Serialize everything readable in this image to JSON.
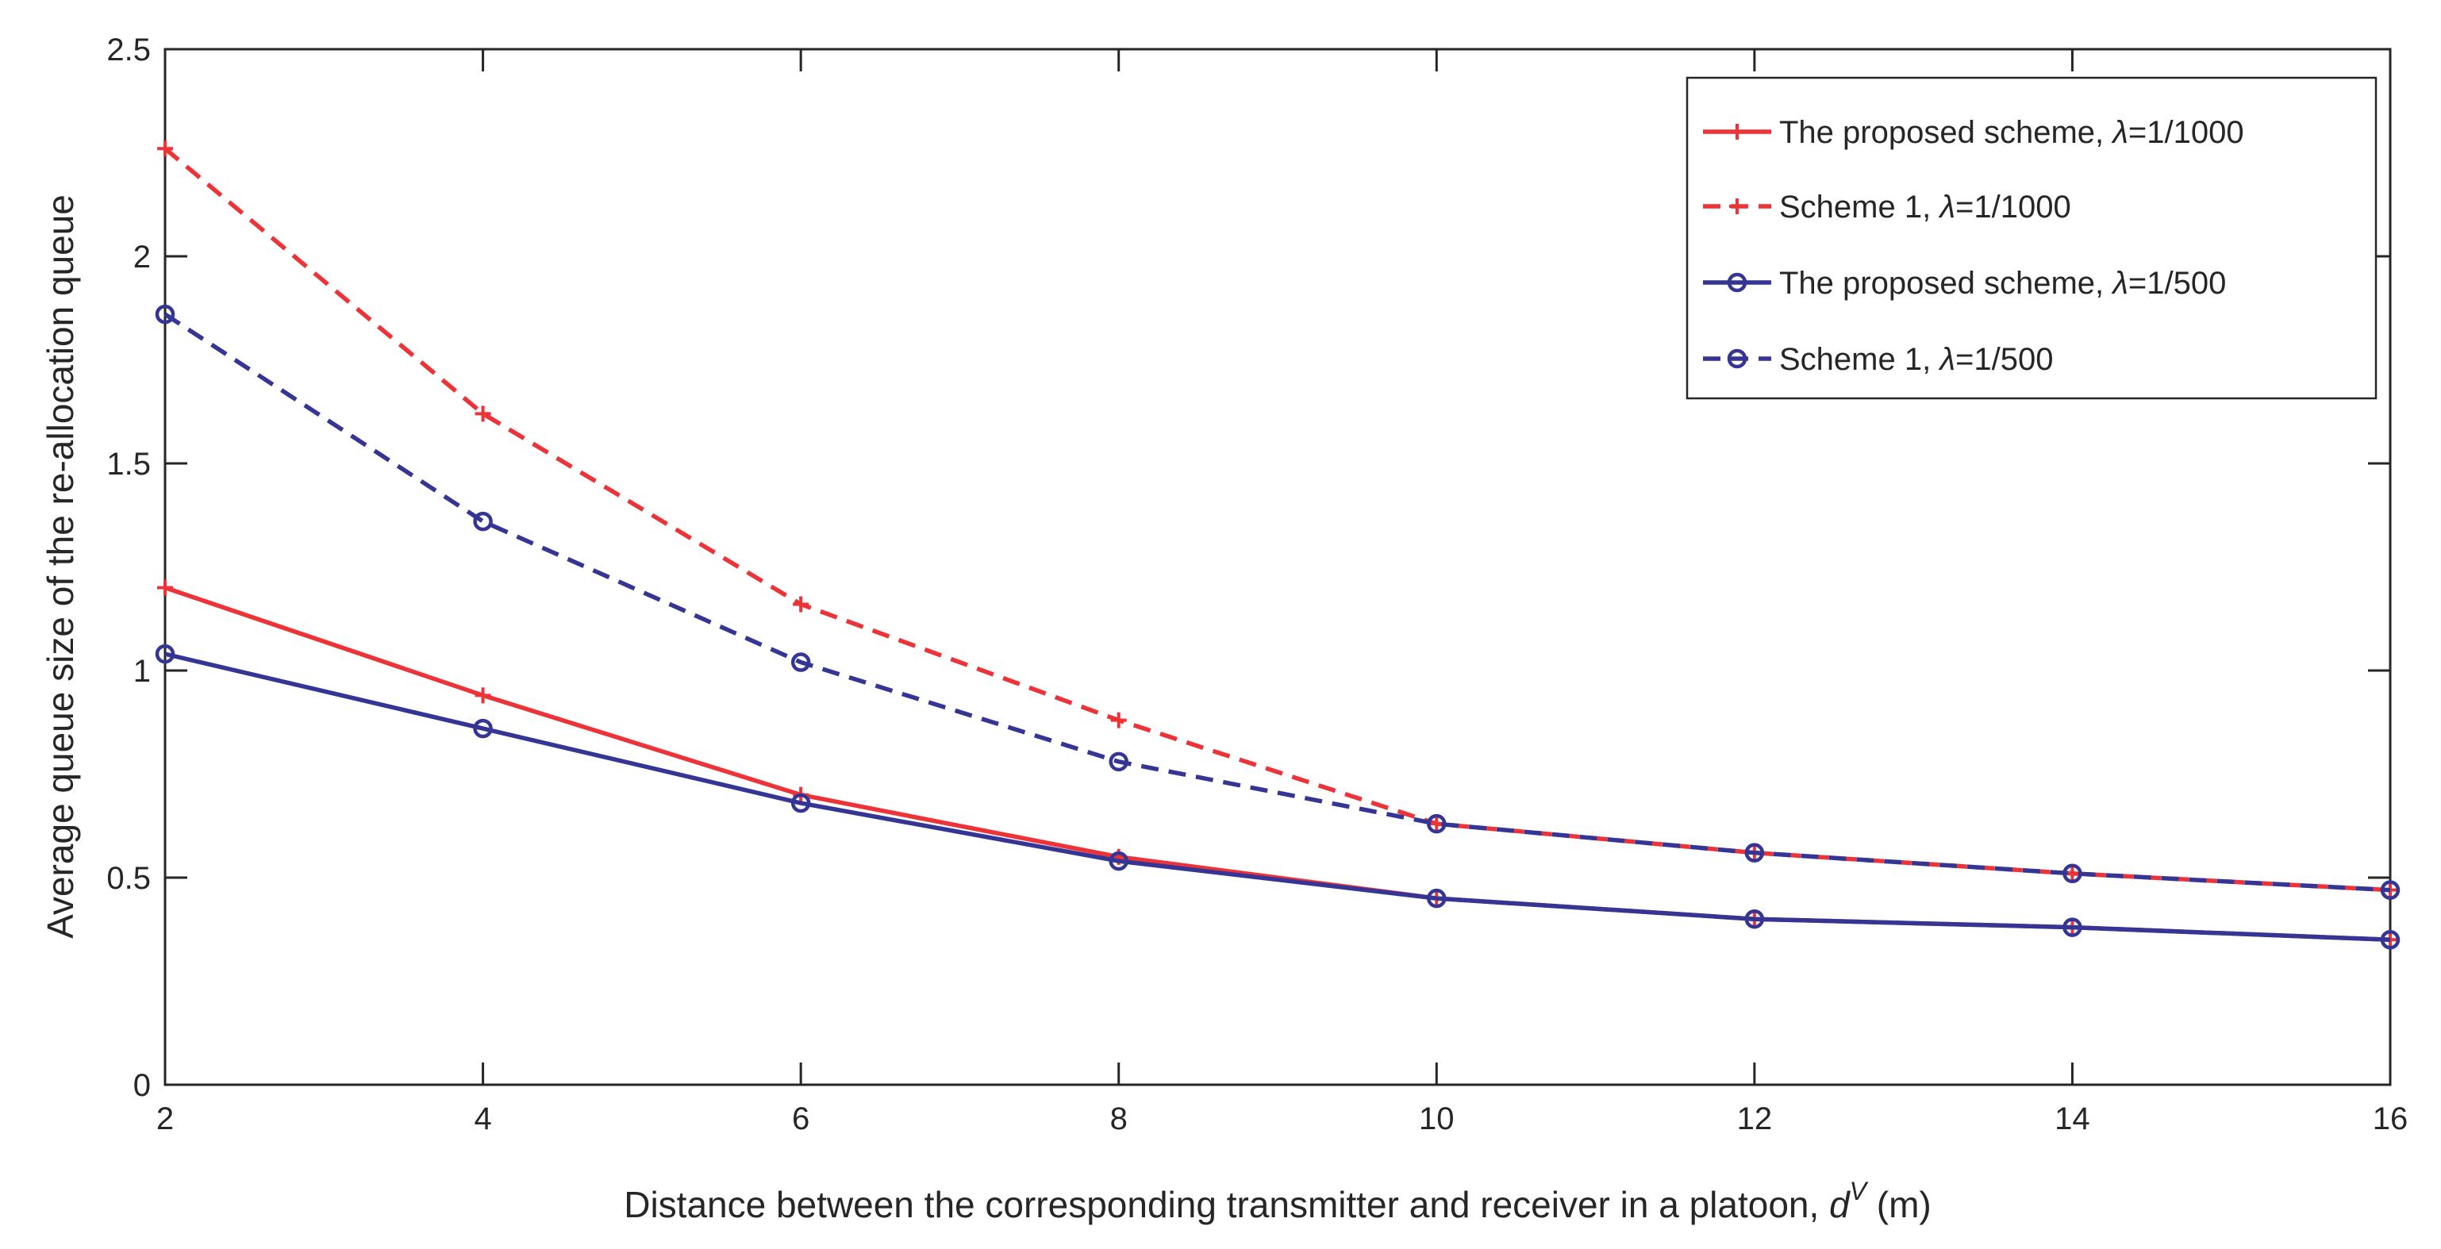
{
  "chart_data": {
    "type": "line",
    "title": "",
    "xlabel": "Distance between the corresponding transmitter and receiver in a platoon, ",
    "xlabel_symbol": "d",
    "xlabel_superscript": "V",
    "xlabel_unit": " (m)",
    "ylabel": "Average queue size of the re-allocation queue",
    "xlim": [
      2,
      16
    ],
    "ylim": [
      0,
      2.5
    ],
    "xticks": [
      2,
      4,
      6,
      8,
      10,
      12,
      14,
      16
    ],
    "xtick_labels": [
      "2",
      "4",
      "6",
      "8",
      "10",
      "12",
      "14",
      "16"
    ],
    "yticks": [
      0,
      0.5,
      1,
      1.5,
      2,
      2.5
    ],
    "ytick_labels": [
      "0",
      "0.5",
      "1",
      "1.5",
      "2",
      "2.5"
    ],
    "grid": false,
    "legend_position": "top-right",
    "x": [
      2,
      4,
      6,
      8,
      10,
      12,
      14,
      16
    ],
    "series": [
      {
        "name": "The proposed scheme, λ=1/1000",
        "legend_prefix": "The proposed scheme, ",
        "legend_symbol": "λ",
        "legend_suffix": "=1/1000",
        "color": "#ee3338",
        "dash": "solid",
        "marker": "plus",
        "values": [
          1.2,
          0.94,
          0.7,
          0.55,
          0.45,
          0.4,
          0.38,
          0.35
        ]
      },
      {
        "name": "Scheme 1, λ=1/1000",
        "legend_prefix": "Scheme 1, ",
        "legend_symbol": "λ",
        "legend_suffix": "=1/1000",
        "color": "#ee3338",
        "dash": "dashed",
        "marker": "plus",
        "values": [
          2.26,
          1.62,
          1.16,
          0.88,
          0.63,
          0.56,
          0.51,
          0.47
        ]
      },
      {
        "name": "The proposed scheme, λ=1/500",
        "legend_prefix": "The proposed scheme, ",
        "legend_symbol": "λ",
        "legend_suffix": "=1/500",
        "color": "#353596",
        "dash": "solid",
        "marker": "circle",
        "values": [
          1.04,
          0.86,
          0.68,
          0.54,
          0.45,
          0.4,
          0.38,
          0.35
        ]
      },
      {
        "name": "Scheme 1, λ=1/500",
        "legend_prefix": "Scheme 1, ",
        "legend_symbol": "λ",
        "legend_suffix": "=1/500",
        "color": "#353596",
        "dash": "dashed",
        "marker": "circle",
        "values": [
          1.86,
          1.36,
          1.02,
          0.78,
          0.63,
          0.56,
          0.51,
          0.47
        ]
      }
    ]
  }
}
